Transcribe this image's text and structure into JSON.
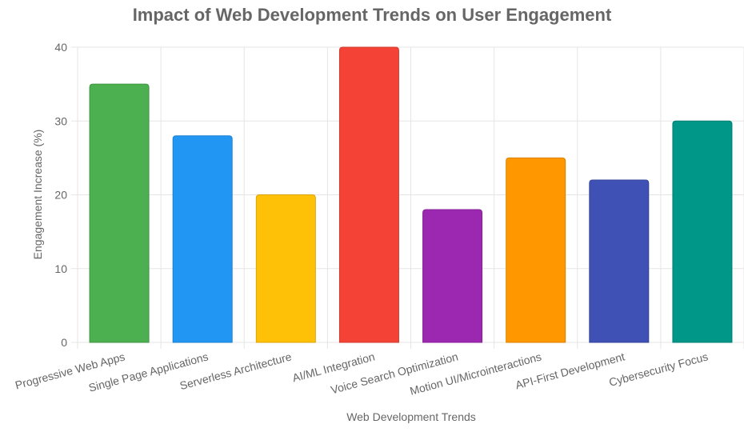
{
  "chart_data": {
    "type": "bar",
    "title": "Impact of Web Development Trends on User Engagement",
    "xlabel": "Web Development Trends",
    "ylabel": "Engagement Increase (%)",
    "ylim": [
      0,
      40
    ],
    "yticks": [
      0,
      10,
      20,
      30,
      40
    ],
    "grid": true,
    "legend": "none",
    "categories": [
      "Progressive Web Apps",
      "Single Page Applications",
      "Serverless Architecture",
      "AI/ML Integration",
      "Voice Search Optimization",
      "Motion UI/Microinteractions",
      "API-First Development",
      "Cybersecurity Focus"
    ],
    "values": [
      35,
      28,
      20,
      40,
      18,
      25,
      22,
      30
    ],
    "colors": [
      "#4CAF50",
      "#2196F3",
      "#FFC107",
      "#F44336",
      "#9C27B0",
      "#FF9800",
      "#3F51B5",
      "#009688"
    ]
  }
}
